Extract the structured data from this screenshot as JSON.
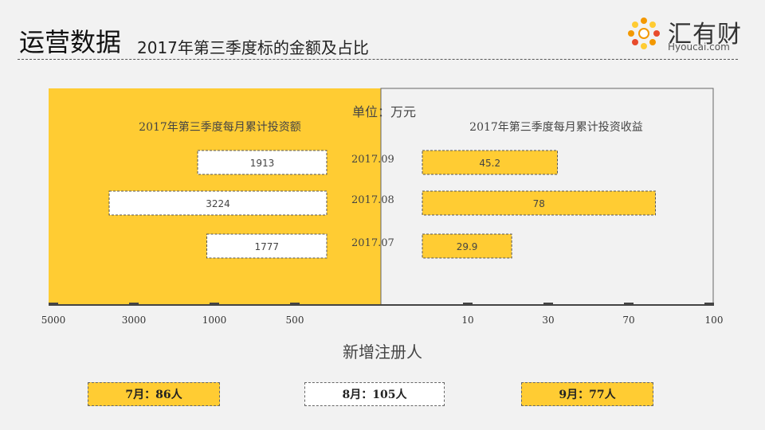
{
  "header": {
    "title": "运营数据",
    "subtitle": "2017年第三季度标的金额及占比"
  },
  "logo": {
    "name": "汇有财",
    "url": "Hyoucai.com",
    "icon": "flower-logo-icon",
    "colors": [
      "#f39800",
      "#e84b2c",
      "#ffcc33"
    ]
  },
  "colors": {
    "accent": "#ffcc33",
    "white": "#ffffff",
    "axis": "#444444"
  },
  "chart_data": {
    "type": "bar",
    "unit_label": "单位：万元",
    "categories": [
      "2017.09",
      "2017.08",
      "2017.07"
    ],
    "left": {
      "title": "2017年第三季度每月累计投资额",
      "values": [
        1913,
        3224,
        1777
      ],
      "value_labels": [
        "1913",
        "3224",
        "1777"
      ],
      "axis_ticks": [
        "5000",
        "3000",
        "1000",
        "500"
      ]
    },
    "right": {
      "title": "2017年第三季度每月累计投资收益",
      "values": [
        45.2,
        78,
        29.9
      ],
      "value_labels": [
        "45.2",
        "78",
        "29.9"
      ],
      "axis_ticks": [
        "10",
        "30",
        "70",
        "100"
      ]
    }
  },
  "footer": {
    "title": "新增注册人",
    "items": [
      {
        "label": "7月：86人",
        "style": "accent"
      },
      {
        "label": "8月：105人",
        "style": "white"
      },
      {
        "label": "9月：77人",
        "style": "accent"
      }
    ]
  }
}
